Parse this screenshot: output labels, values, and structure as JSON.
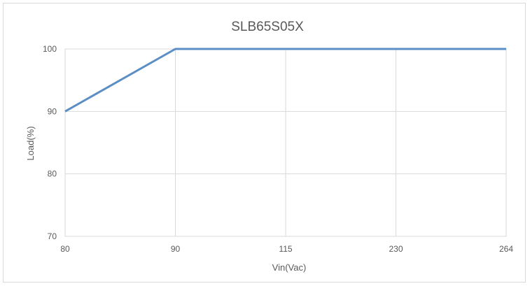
{
  "chart_data": {
    "type": "line",
    "title": "SLB65S05X",
    "xlabel": "Vin(Vac)",
    "ylabel": "Load(%)",
    "x_axis_type": "category",
    "categories": [
      "80",
      "90",
      "115",
      "230",
      "264"
    ],
    "series": [
      {
        "values": [
          90,
          100,
          100,
          100,
          100
        ],
        "color": "#5b8ec4"
      }
    ],
    "ylim": [
      70,
      100
    ],
    "yticks": [
      70,
      80,
      90,
      100
    ],
    "grid": true,
    "legend": "none",
    "gridline_color": "#d9d9d9",
    "text_color": "#595959"
  }
}
